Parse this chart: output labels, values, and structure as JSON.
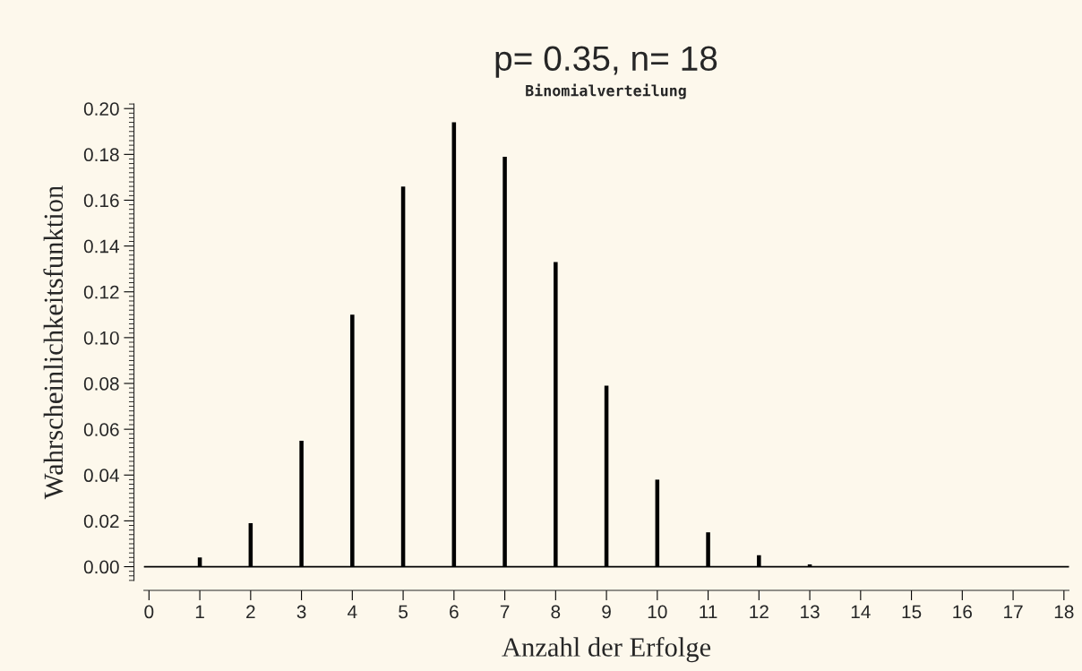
{
  "chart_data": {
    "type": "bar",
    "title": "p= 0.35, n= 18",
    "subtitle": "Binomialverteilung",
    "xlabel": "Anzahl der Erfolge",
    "ylabel": "Wahrscheinlichkeitsfunktion",
    "x": [
      0,
      1,
      2,
      3,
      4,
      5,
      6,
      7,
      8,
      9,
      10,
      11,
      12,
      13,
      14,
      15,
      16,
      17,
      18
    ],
    "values": [
      0.0,
      0.004,
      0.019,
      0.055,
      0.11,
      0.166,
      0.194,
      0.179,
      0.133,
      0.079,
      0.038,
      0.015,
      0.005,
      0.001,
      0.0,
      0.0,
      0.0,
      0.0,
      0.0
    ],
    "color": "#000000",
    "xlim": [
      -0.1,
      18.1
    ],
    "xticks": [
      0,
      1,
      2,
      3,
      4,
      5,
      6,
      7,
      8,
      9,
      10,
      11,
      12,
      13,
      14,
      15,
      16,
      17,
      18
    ],
    "ylim": [
      -0.006,
      0.202
    ],
    "yticks": [
      {
        "value": 0.0,
        "label": "0.00"
      },
      {
        "value": 0.02,
        "label": "0.02"
      },
      {
        "value": 0.04,
        "label": "0.04"
      },
      {
        "value": 0.06,
        "label": "0.06"
      },
      {
        "value": 0.08,
        "label": "0.08"
      },
      {
        "value": 0.1,
        "label": "0.10"
      },
      {
        "value": 0.12,
        "label": "0.12"
      },
      {
        "value": 0.14,
        "label": "0.14"
      },
      {
        "value": 0.16,
        "label": "0.16"
      },
      {
        "value": 0.18,
        "label": "0.18"
      },
      {
        "value": 0.2,
        "label": "0.20"
      }
    ],
    "ref_lines": [
      {
        "axis": "y",
        "value": 0,
        "color": "#000000"
      }
    ],
    "grid": false,
    "legend": false
  }
}
